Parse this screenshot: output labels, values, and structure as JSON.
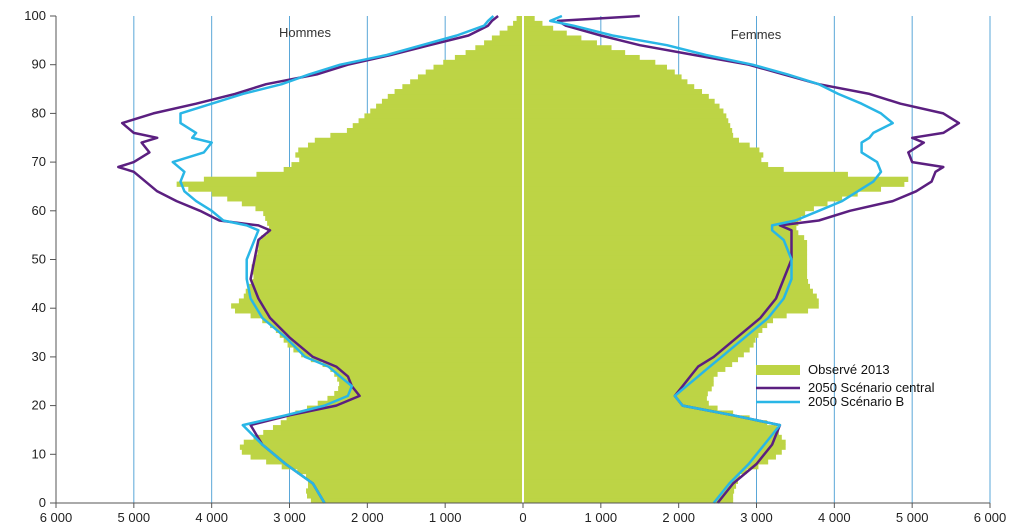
{
  "chart_data": {
    "type": "area",
    "side_labels": [
      "Hommes",
      "Femmes"
    ],
    "x_ticks": [
      "6 000",
      "5 000",
      "4 000",
      "3 000",
      "2 000",
      "1 000",
      "0",
      "1 000",
      "2 000",
      "3 000",
      "4 000",
      "5 000",
      "6 000"
    ],
    "y_ticks": [
      "0",
      "10",
      "20",
      "30",
      "40",
      "50",
      "60",
      "70",
      "80",
      "90",
      "100"
    ],
    "xlim": [
      -6000,
      6000
    ],
    "ylim": [
      0,
      100
    ],
    "grid": "vertical",
    "legend_position": "right",
    "colors": {
      "observed": "#bdd445",
      "central": "#5b1f80",
      "scenario_b": "#29b6e6",
      "grid": "#5aa7d8",
      "axis_zero": "#ffffff"
    },
    "legend": [
      "Observé 2013",
      "2050 Scénario central",
      "2050 Scénario B"
    ],
    "series": [
      {
        "name": "Observé 2013",
        "ages": [
          0,
          2,
          4,
          6,
          8,
          10,
          12,
          14,
          16,
          18,
          20,
          22,
          24,
          26,
          28,
          30,
          32,
          34,
          36,
          38,
          40,
          42,
          44,
          46,
          48,
          50,
          52,
          54,
          56,
          58,
          60,
          62,
          64,
          65,
          66,
          67,
          68,
          69,
          70,
          72,
          74,
          75,
          76,
          78,
          80,
          82,
          84,
          86,
          88,
          90,
          92,
          94,
          96,
          98,
          100
        ],
        "hommes": [
          2700,
          2800,
          2750,
          2800,
          3200,
          3600,
          3650,
          3400,
          3150,
          3000,
          2700,
          2450,
          2350,
          2400,
          2500,
          2800,
          3000,
          3100,
          3200,
          3400,
          3800,
          3600,
          3550,
          3450,
          3500,
          3450,
          3400,
          3400,
          3250,
          3300,
          3350,
          3700,
          4100,
          4500,
          4400,
          3800,
          3050,
          3100,
          2850,
          2950,
          2700,
          2650,
          2300,
          2150,
          2000,
          1850,
          1700,
          1500,
          1300,
          1100,
          800,
          550,
          350,
          150,
          60
        ],
        "femmes": [
          2700,
          2700,
          2750,
          2800,
          3100,
          3300,
          3400,
          3300,
          3250,
          2800,
          2400,
          2350,
          2450,
          2450,
          2650,
          2800,
          2950,
          3000,
          3100,
          3250,
          3800,
          3800,
          3700,
          3650,
          3650,
          3650,
          3650,
          3650,
          3500,
          3550,
          3650,
          4000,
          4400,
          4800,
          5000,
          4900,
          3450,
          3250,
          3050,
          3100,
          2850,
          2700,
          2700,
          2650,
          2600,
          2500,
          2350,
          2150,
          2000,
          1800,
          1400,
          1050,
          650,
          300,
          100
        ]
      },
      {
        "name": "2050 Scénario central",
        "ages": [
          0,
          4,
          8,
          12,
          16,
          18,
          20,
          22,
          24,
          26,
          28,
          30,
          34,
          38,
          42,
          46,
          50,
          54,
          56,
          57,
          58,
          60,
          62,
          64,
          66,
          68,
          69,
          70,
          72,
          74,
          75,
          76,
          78,
          80,
          82,
          84,
          86,
          88,
          90,
          92,
          94,
          96,
          98,
          99,
          100
        ],
        "hommes": [
          2550,
          2700,
          3050,
          3350,
          3500,
          3000,
          2400,
          2100,
          2200,
          2250,
          2400,
          2700,
          3000,
          3250,
          3400,
          3500,
          3450,
          3400,
          3250,
          3400,
          3900,
          4150,
          4450,
          4700,
          4850,
          5000,
          5200,
          5000,
          4800,
          4900,
          4700,
          5000,
          5150,
          4750,
          4200,
          3700,
          3300,
          2650,
          2250,
          1700,
          1200,
          700,
          450,
          400,
          320
        ],
        "femmes": [
          2500,
          2700,
          3000,
          3200,
          3300,
          2700,
          2050,
          1950,
          2050,
          2150,
          2250,
          2450,
          2750,
          3050,
          3250,
          3350,
          3450,
          3450,
          3450,
          3300,
          3800,
          4200,
          4750,
          5050,
          5250,
          5300,
          5400,
          5000,
          4950,
          5150,
          5000,
          5400,
          5600,
          5400,
          4850,
          4450,
          3800,
          3350,
          2900,
          2200,
          1500,
          1000,
          550,
          450,
          1500
        ]
      },
      {
        "name": "2050 Scénario B",
        "ages": [
          0,
          4,
          8,
          12,
          16,
          18,
          20,
          22,
          24,
          26,
          28,
          30,
          34,
          38,
          42,
          46,
          50,
          54,
          56,
          57,
          58,
          60,
          62,
          64,
          66,
          68,
          70,
          72,
          74,
          75,
          76,
          78,
          80,
          82,
          84,
          86,
          88,
          90,
          92,
          94,
          96,
          98,
          99,
          100
        ],
        "hommes": [
          2550,
          2700,
          3050,
          3350,
          3600,
          3050,
          2550,
          2250,
          2200,
          2350,
          2500,
          2800,
          3050,
          3350,
          3500,
          3550,
          3550,
          3450,
          3400,
          3550,
          3850,
          4000,
          4200,
          4350,
          4400,
          4350,
          4500,
          4100,
          4000,
          4250,
          4200,
          4400,
          4400,
          4000,
          3600,
          3100,
          2750,
          2350,
          1750,
          1300,
          850,
          500,
          450,
          380
        ],
        "femmes": [
          2450,
          2650,
          2900,
          3100,
          3300,
          2700,
          2050,
          1950,
          2100,
          2250,
          2400,
          2550,
          2850,
          3150,
          3350,
          3450,
          3450,
          3350,
          3200,
          3200,
          3500,
          3800,
          4100,
          4300,
          4500,
          4600,
          4550,
          4350,
          4350,
          4450,
          4500,
          4750,
          4600,
          4350,
          4050,
          3800,
          3400,
          2950,
          2350,
          1850,
          1150,
          650,
          350,
          500
        ]
      }
    ]
  }
}
